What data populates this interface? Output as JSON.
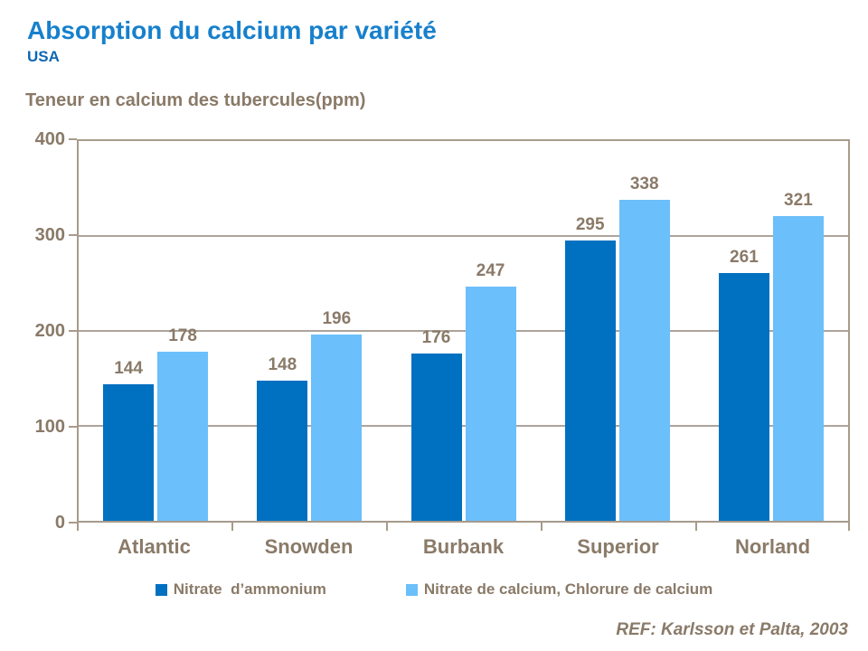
{
  "header": {
    "title": "Absorption du calcium par variété",
    "subtitle": "USA"
  },
  "chart_data": {
    "type": "bar",
    "title": "Teneur en calcium des tubercules(ppm)",
    "categories": [
      "Atlantic",
      "Snowden",
      "Burbank",
      "Superior",
      "Norland"
    ],
    "series": [
      {
        "name": "Nitrate  d’ammonium",
        "color": "#0070C0",
        "values": [
          144,
          148,
          176,
          295,
          261
        ]
      },
      {
        "name": "Nitrate de calcium, Chlorure de calcium",
        "color": "#6BBFFA",
        "values": [
          178,
          196,
          247,
          338,
          321
        ]
      }
    ],
    "ylim": [
      0,
      400
    ],
    "yticks": [
      0,
      100,
      200,
      300,
      400
    ],
    "grid": true,
    "legend_position": "bottom",
    "data_labels": true
  },
  "footer": {
    "reference": "REF: Karlsson et Palta, 2003"
  },
  "colors": {
    "title_blue": "#1780CC",
    "subtitle_blue": "#0E67B3",
    "text_brown": "#8A7A68",
    "axis": "#A89B8B",
    "gridline": "#ACA49C",
    "series_dark": "#0070C0",
    "series_light": "#6BBFFA"
  }
}
